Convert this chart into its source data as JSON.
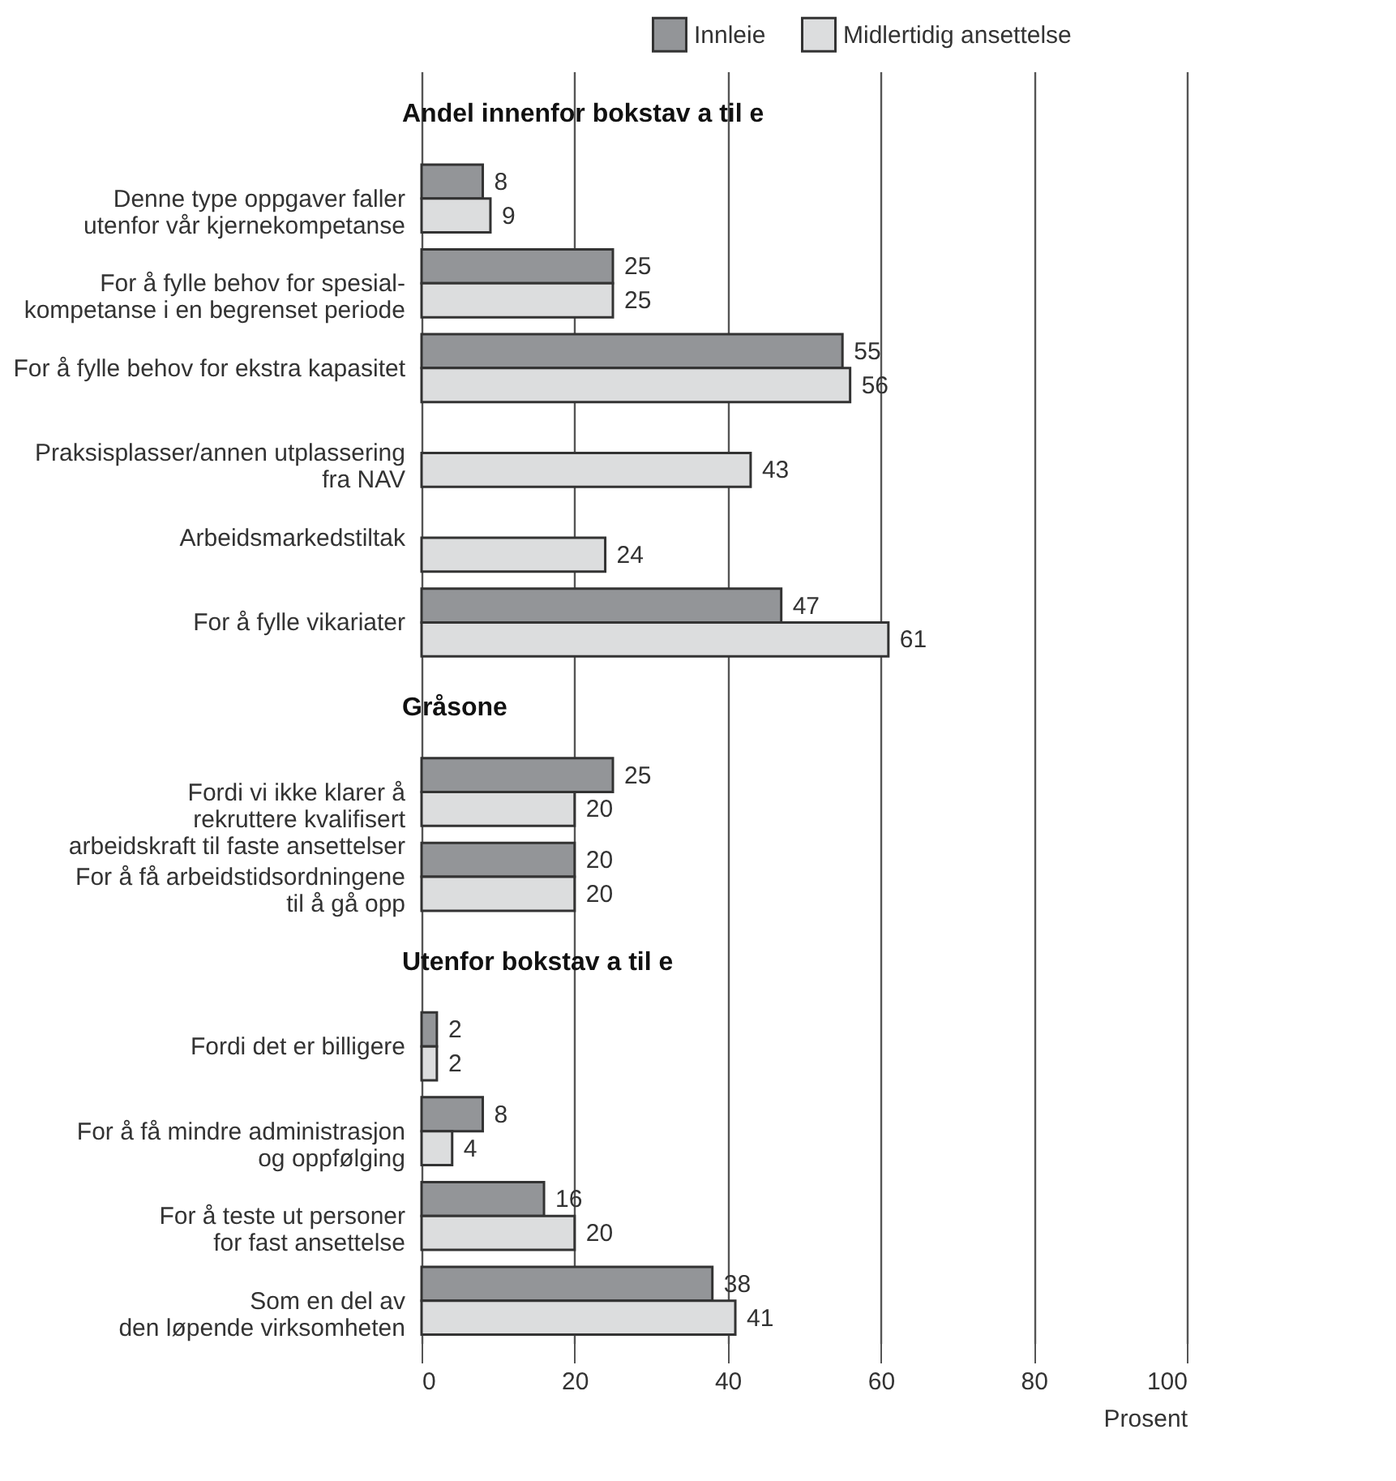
{
  "chart_data": {
    "type": "bar",
    "orientation": "horizontal",
    "xlabel": "Prosent",
    "categories": [
      "Andel innenfor bokstav a til e",
      "Denne type oppgaver faller\nutenfor vår kjernekompetanse",
      "For å fylle behov for spesial-\nkompetanse i en begrenset periode",
      "For å fylle behov for ekstra kapasitet",
      "Praksisplasser/annen utplassering\nfra NAV",
      "Arbeidsmarkedstiltak",
      "For å fylle vikariater",
      "Gråsone",
      "Fordi vi ikke klarer å\nrekruttere kvalifisert\narbeidskraft til faste ansettelser",
      "For å få arbeidstidsordningene\ntil å gå opp",
      "Utenfor bokstav a til e",
      "Fordi det er billigere",
      "For å få mindre administrasjon\nog oppfølging",
      "For å teste ut personer\nfor fast ansettelse",
      "Som en del av\nden løpende virksomheten"
    ],
    "series": [
      {
        "name": "Innleie",
        "color": "#939598",
        "values": [
          null,
          8,
          25,
          55,
          null,
          null,
          47,
          null,
          25,
          20,
          null,
          2,
          8,
          16,
          38
        ]
      },
      {
        "name": "Midlertidig ansettelse",
        "color": "#dcddde",
        "values": [
          null,
          9,
          25,
          56,
          43,
          24,
          61,
          null,
          20,
          20,
          null,
          2,
          4,
          20,
          41
        ]
      }
    ],
    "xlim": [
      0,
      100
    ],
    "xticks": [
      0,
      20,
      40,
      60,
      80,
      100
    ],
    "grid": "x",
    "legend": "top right",
    "data_labels": true
  }
}
